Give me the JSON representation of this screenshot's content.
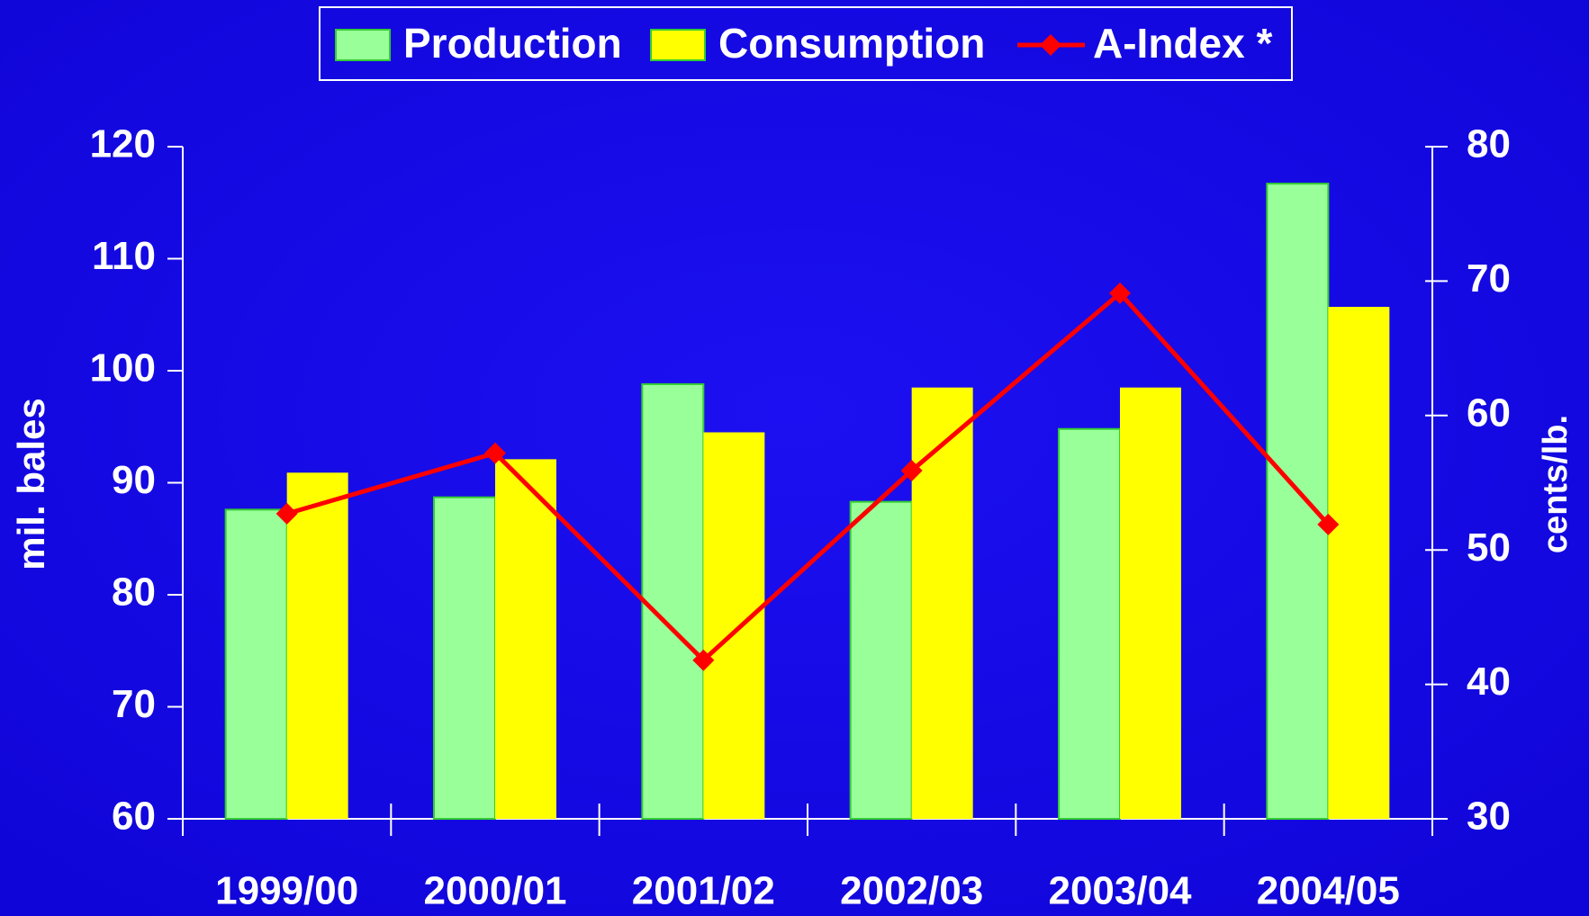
{
  "chart_data": {
    "type": "bar",
    "categories": [
      "1999/00",
      "2000/01",
      "2001/02",
      "2002/03",
      "2003/04",
      "2004/05"
    ],
    "series": [
      {
        "name": "Production",
        "color": "#99ff99",
        "type": "bar",
        "values": [
          87.6,
          88.7,
          98.8,
          88.3,
          94.8,
          116.7
        ]
      },
      {
        "name": "Consumption",
        "color": "#ffff00",
        "type": "bar",
        "values": [
          90.9,
          92.1,
          94.5,
          98.5,
          98.5,
          105.7
        ]
      },
      {
        "name": "A-Index *",
        "color": "#ff0000",
        "type": "line",
        "axis": "y2",
        "values": [
          52.7,
          57.2,
          41.8,
          55.9,
          69.1,
          51.9
        ]
      }
    ],
    "ylabel": "mil. bales",
    "y2label": "cents/lb.",
    "ylim": [
      60,
      120
    ],
    "yticks": [
      60,
      70,
      80,
      90,
      100,
      110,
      120
    ],
    "y2lim": [
      30,
      80
    ],
    "y2ticks": [
      30,
      40,
      50,
      60,
      70,
      80
    ],
    "legend": "top"
  }
}
